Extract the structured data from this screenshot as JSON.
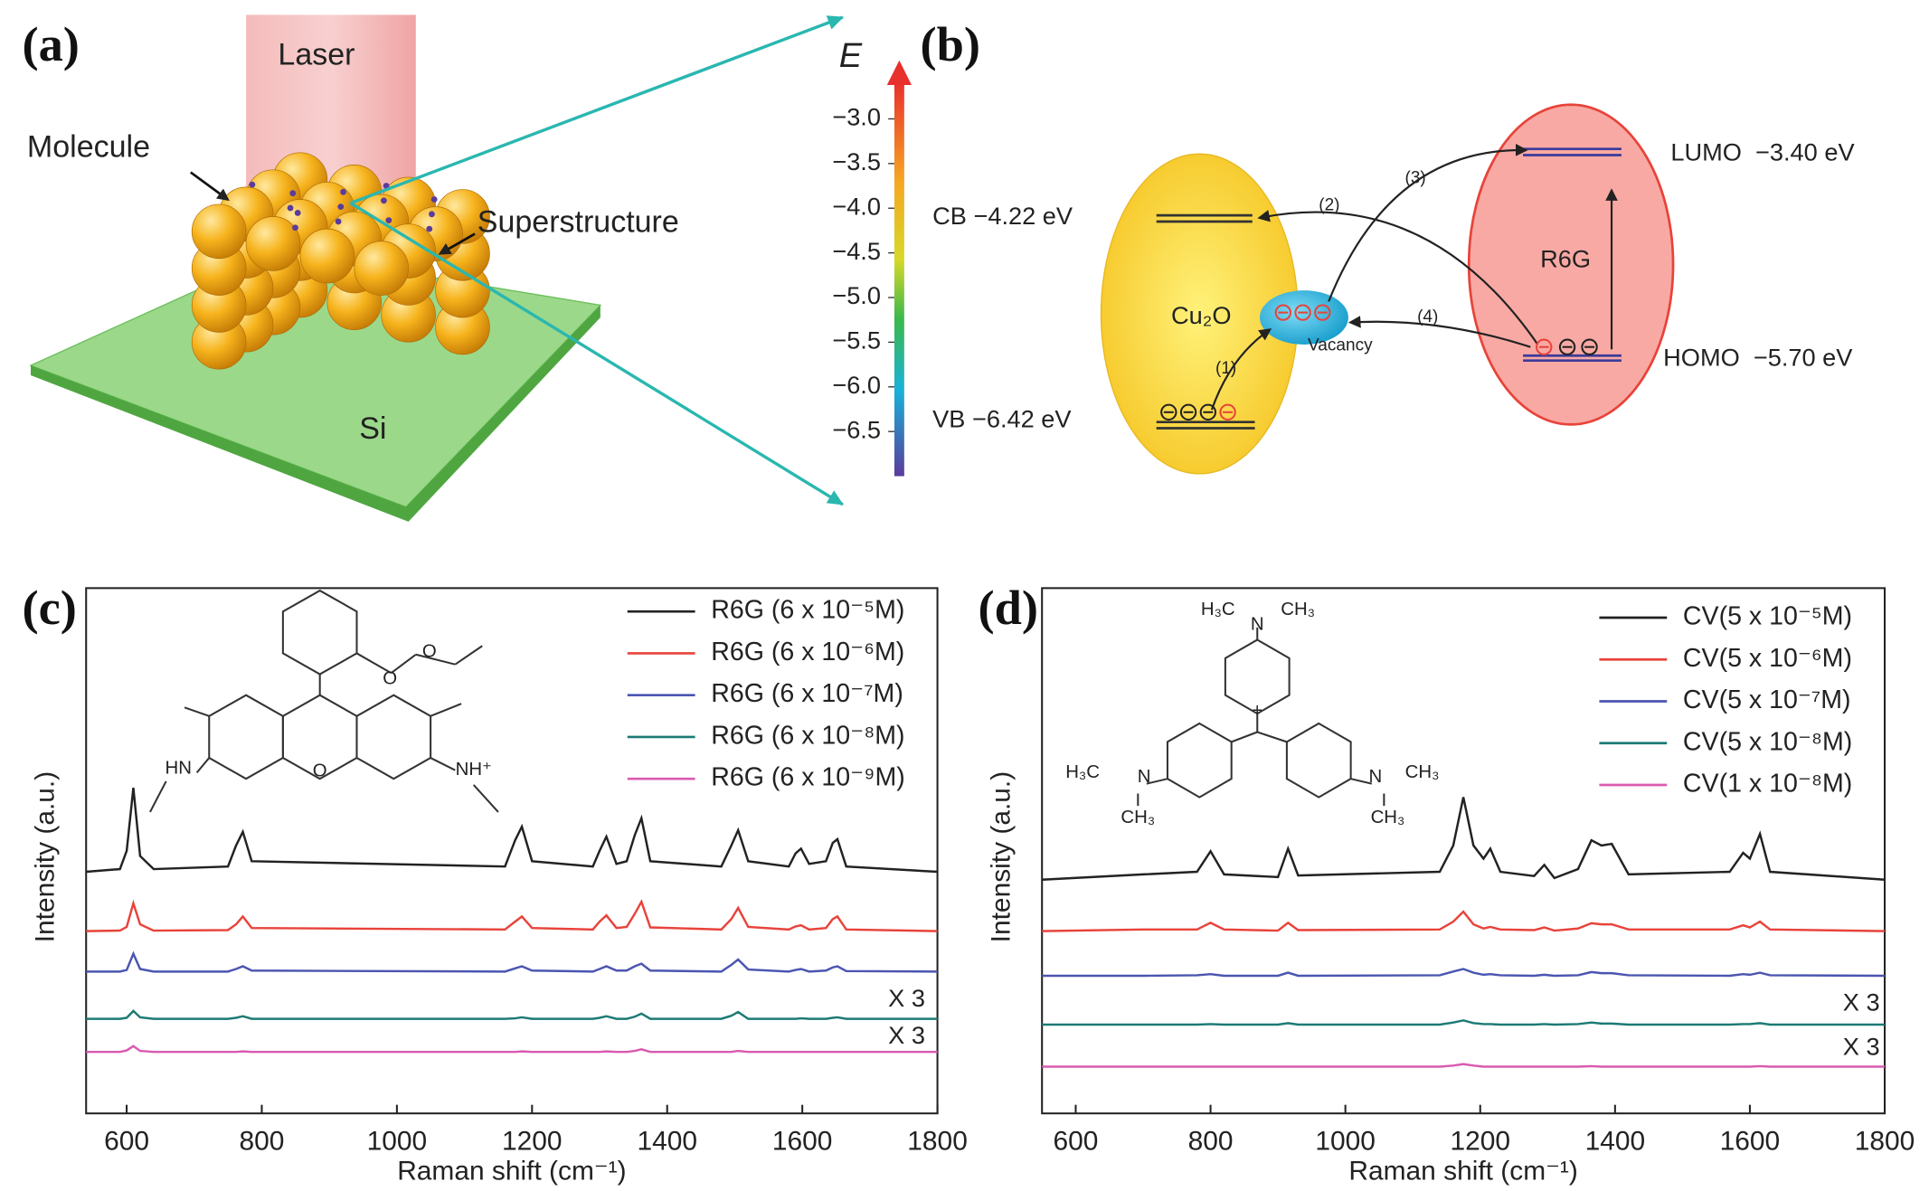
{
  "panel_labels": [
    "(a)",
    "(b)",
    "(c)",
    "(d)"
  ],
  "panel_a": {
    "laser": "Laser",
    "molecule": "Molecule",
    "superstructure": "Superstructure",
    "substrate": "Si"
  },
  "panel_b": {
    "energy_axis": {
      "label": "E",
      "ylim": [
        -2.4,
        -7.0
      ],
      "ticks": [
        {
          "value": -3,
          "label": "−3.0"
        },
        {
          "value": -3.5,
          "label": "−3.5"
        },
        {
          "value": -4,
          "label": "−4.0"
        },
        {
          "value": -4.5,
          "label": "−4.5"
        },
        {
          "value": -5,
          "label": "−5.0"
        },
        {
          "value": -5.5,
          "label": "−5.5"
        },
        {
          "value": -6,
          "label": "−6.0"
        },
        {
          "value": -6.5,
          "label": "−6.5"
        }
      ]
    },
    "cb": "CB −4.22 eV",
    "vb": "VB −6.42 eV",
    "material": "Cu₂O",
    "vacancy": "Vacancy",
    "steps": [
      "(1)",
      "(2)",
      "(3)",
      "(4)"
    ],
    "dye": "R6G",
    "lumo": "LUMO  −3.40 eV",
    "homo": "HOMO  −5.70 eV"
  },
  "chart_data": [
    {
      "type": "line",
      "xlabel": "Raman shift (cm⁻¹)",
      "ylabel": "Intensity (a.u.)",
      "xlim": [
        540,
        1800
      ],
      "xticks": [
        600,
        800,
        1000,
        1200,
        1400,
        1600,
        1800
      ],
      "ylim": [
        0,
        100
      ],
      "annotations": [
        "X 3",
        "X 3"
      ],
      "structure_labels": [
        "O",
        "O",
        "HN",
        "O",
        "NH⁺"
      ],
      "x": [
        540,
        590,
        600,
        610,
        620,
        640,
        750,
        762,
        772,
        785,
        1160,
        1175,
        1185,
        1200,
        1290,
        1300,
        1310,
        1325,
        1340,
        1352,
        1362,
        1375,
        1480,
        1495,
        1505,
        1520,
        1580,
        1590,
        1598,
        1610,
        1635,
        1645,
        1652,
        1665,
        1800
      ],
      "series": [
        {
          "name": "R6G (6 x 10⁻⁵M)",
          "color": "#222222",
          "values": [
            46,
            46.5,
            50,
            62,
            49,
            46.5,
            47,
            51,
            53.6,
            48,
            47,
            52,
            54.6,
            48,
            47,
            50,
            52.7,
            47.5,
            48,
            53,
            56.2,
            48,
            47,
            51,
            53.9,
            48,
            47,
            49.5,
            50.4,
            47.5,
            48,
            51.5,
            52.2,
            47,
            46
          ]
        },
        {
          "name": "R6G (6 x 10⁻⁶M)",
          "color": "#e8433a",
          "values": [
            34.7,
            34.8,
            35.5,
            40,
            36,
            34.8,
            34.9,
            36,
            37.5,
            35.3,
            35,
            36.5,
            37.5,
            35.3,
            35,
            36.5,
            37.7,
            35.3,
            35.5,
            38,
            40.3,
            35.4,
            35,
            37,
            39.1,
            35.5,
            35,
            35.6,
            35.8,
            35,
            35.3,
            37,
            37.5,
            35,
            34.7
          ]
        },
        {
          "name": "R6G (6 x 10⁻⁷M)",
          "color": "#4b55b0",
          "values": [
            27,
            27,
            27.3,
            30.4,
            27.5,
            27,
            27,
            27.5,
            28,
            27.2,
            27,
            27.6,
            28,
            27.2,
            27,
            27.5,
            28,
            27.2,
            27.2,
            28,
            28.5,
            27.2,
            27,
            28.3,
            29.3,
            27.4,
            27,
            27.3,
            27.5,
            27,
            27.2,
            27.8,
            28,
            27.1,
            27
          ]
        },
        {
          "name": "R6G (6 x 10⁻⁸M)",
          "color": "#1c7a74",
          "values": [
            18,
            18,
            18.2,
            19.5,
            18.3,
            18,
            18,
            18.2,
            18.5,
            18,
            18,
            18.1,
            18.3,
            18,
            18,
            18.2,
            18.5,
            18,
            18,
            18.4,
            19,
            18,
            18,
            18.6,
            19.3,
            18,
            18,
            18,
            18.1,
            18,
            18,
            18.2,
            18.3,
            18,
            18
          ]
        },
        {
          "name": "R6G (6 x 10⁻⁹M)",
          "color": "#d95bb0",
          "values": [
            11.7,
            11.7,
            12,
            12.8,
            11.9,
            11.7,
            11.7,
            11.7,
            11.8,
            11.7,
            11.7,
            11.7,
            11.8,
            11.7,
            11.7,
            11.7,
            11.8,
            11.7,
            11.7,
            11.9,
            12.2,
            11.7,
            11.7,
            11.7,
            11.9,
            11.7,
            11.7,
            11.7,
            11.7,
            11.7,
            11.7,
            11.7,
            11.7,
            11.7,
            11.7
          ]
        }
      ]
    },
    {
      "type": "line",
      "xlabel": "Raman shift (cm⁻¹)",
      "ylabel": "Intensity (a.u.)",
      "xlim": [
        550,
        1800
      ],
      "xticks": [
        600,
        800,
        1000,
        1200,
        1400,
        1600,
        1800
      ],
      "ylim": [
        0,
        100
      ],
      "annotations": [
        "X 3",
        "X 3"
      ],
      "structure_labels": [
        "H₃C",
        "N",
        "CH₃",
        "+",
        "H₃C",
        "N",
        "CH₃",
        "N",
        "CH₃",
        "CH₃"
      ],
      "x": [
        550,
        700,
        780,
        800,
        820,
        900,
        915,
        930,
        1140,
        1160,
        1175,
        1190,
        1205,
        1215,
        1230,
        1280,
        1295,
        1310,
        1345,
        1365,
        1380,
        1395,
        1420,
        1570,
        1590,
        1600,
        1615,
        1630,
        1800
      ],
      "series": [
        {
          "name": "CV(5 x 10⁻⁵M)",
          "color": "#222222",
          "values": [
            44.5,
            45.5,
            46,
            49.9,
            45.5,
            45,
            50.4,
            45.3,
            46,
            51,
            60.2,
            51,
            48.5,
            50.4,
            46,
            45.2,
            47.3,
            44.8,
            46.5,
            52,
            51,
            51.3,
            45.5,
            46,
            49.6,
            48.5,
            53.2,
            46,
            44.5
          ]
        },
        {
          "name": "CV(5 x 10⁻⁶M)",
          "color": "#e8433a",
          "values": [
            34.7,
            35,
            35,
            36.3,
            35,
            34.8,
            36.3,
            34.9,
            35,
            36.5,
            38.4,
            36,
            35.2,
            35.5,
            35,
            34.9,
            35.4,
            34.8,
            35.2,
            36.2,
            36,
            36,
            35,
            35,
            35.8,
            35.4,
            36.5,
            35,
            34.7
          ]
        },
        {
          "name": "CV(5 x 10⁻⁷M)",
          "color": "#4b55b0",
          "values": [
            26.2,
            26.2,
            26.3,
            26.5,
            26.2,
            26.2,
            26.8,
            26.2,
            26.3,
            27,
            27.5,
            26.8,
            26.4,
            26.5,
            26.3,
            26.2,
            26.4,
            26.2,
            26.3,
            26.9,
            26.7,
            26.7,
            26.3,
            26.2,
            26.5,
            26.4,
            26.8,
            26.3,
            26.2
          ]
        },
        {
          "name": "CV(5 x 10⁻⁸M)",
          "color": "#1c7a74",
          "values": [
            16.9,
            16.9,
            16.9,
            17,
            16.9,
            16.9,
            17.2,
            16.9,
            16.9,
            17.3,
            17.7,
            17.2,
            17,
            17,
            16.9,
            16.9,
            17,
            16.9,
            17,
            17.3,
            17.1,
            17.1,
            16.9,
            16.9,
            17,
            17,
            17.2,
            16.9,
            16.9
          ]
        },
        {
          "name": "CV(1 x 10⁻⁸M)",
          "color": "#d95bb0",
          "values": [
            8.9,
            8.9,
            8.9,
            8.9,
            8.9,
            8.9,
            8.9,
            8.9,
            8.9,
            9.1,
            9.4,
            9.1,
            8.9,
            8.9,
            8.9,
            8.9,
            8.9,
            8.9,
            8.9,
            9,
            8.9,
            8.9,
            8.9,
            8.9,
            8.9,
            8.9,
            9,
            8.9,
            8.9
          ]
        }
      ]
    }
  ]
}
